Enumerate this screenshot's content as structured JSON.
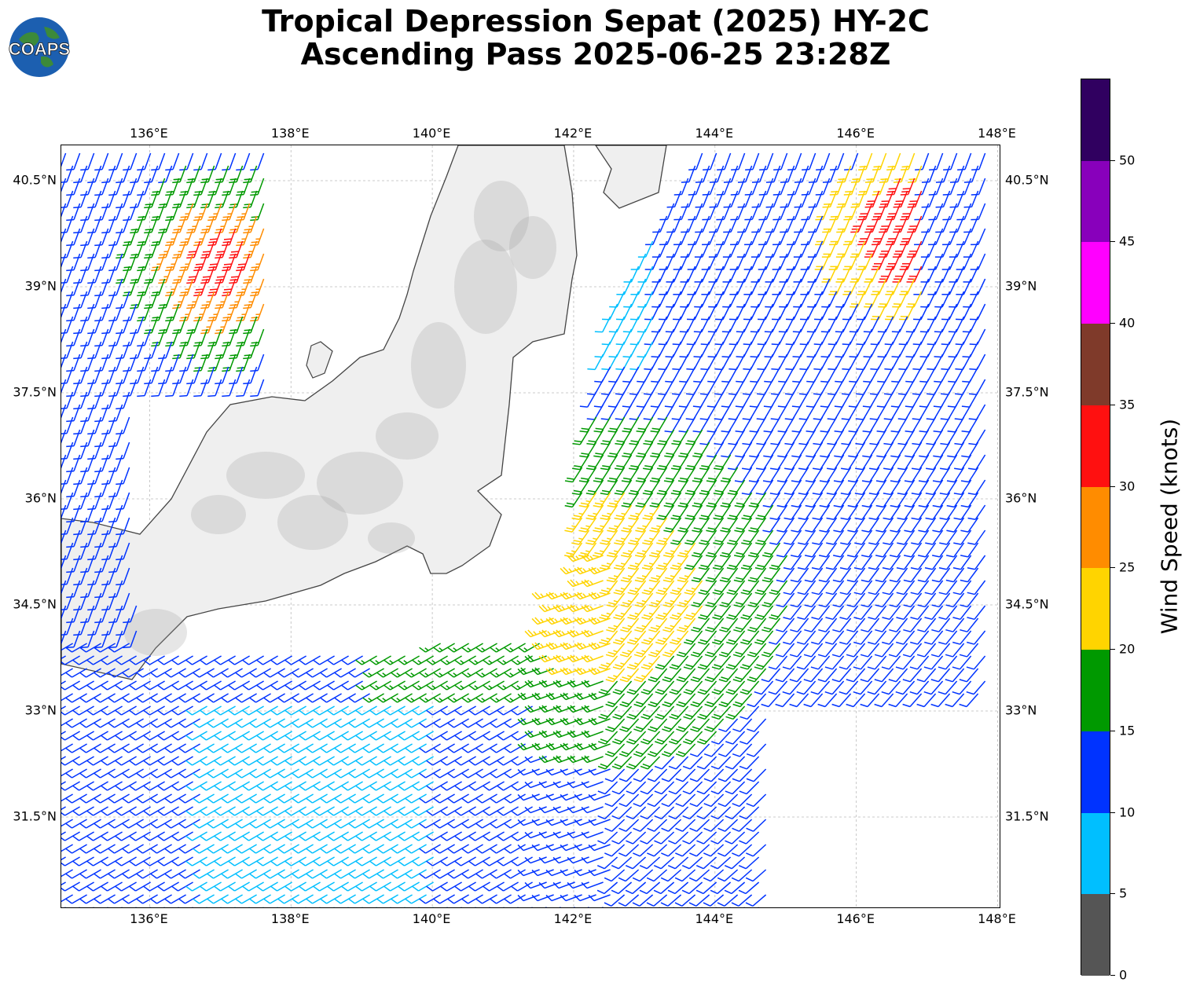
{
  "title": {
    "line1": "Tropical Depression Sepat (2025) HY-2C",
    "line2": "Ascending Pass 2025-06-25 23:28Z"
  },
  "logo": {
    "text": "COAPS"
  },
  "map": {
    "lon_range": [
      134.75,
      148.05
    ],
    "lat_range": [
      30.2,
      41.0
    ],
    "lon_ticks": [
      "136°E",
      "138°E",
      "140°E",
      "142°E",
      "144°E",
      "146°E",
      "148°E"
    ],
    "lat_ticks": [
      "40.5°N",
      "39°N",
      "37.5°N",
      "36°N",
      "34.5°N",
      "33°N",
      "31.5°N"
    ],
    "lon_tick_values": [
      136,
      138,
      140,
      142,
      144,
      146,
      148
    ],
    "lat_tick_values": [
      40.5,
      39,
      37.5,
      36,
      34.5,
      33,
      31.5
    ],
    "gridlines": true,
    "land_style": "grayscale terrain with coastline outline"
  },
  "colorbar": {
    "label": "Wind Speed (knots)",
    "ticks": [
      "0",
      "5",
      "10",
      "15",
      "20",
      "25",
      "30",
      "35",
      "40",
      "45",
      "50"
    ],
    "tick_values": [
      0,
      5,
      10,
      15,
      20,
      25,
      30,
      35,
      40,
      45,
      50
    ],
    "max": 55,
    "colors": [
      "#555555",
      "#00bfff",
      "#0033ff",
      "#009900",
      "#ffd400",
      "#ff8c00",
      "#ff1010",
      "#7f3a2a",
      "#ff00ff",
      "#8800bb",
      "#300060"
    ]
  }
}
